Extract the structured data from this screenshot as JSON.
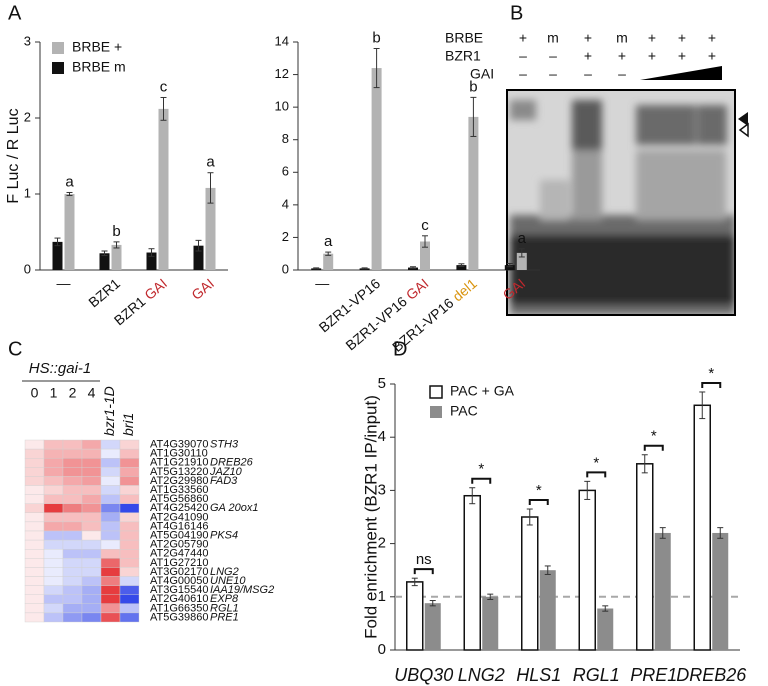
{
  "panel_labels": [
    "A",
    "B",
    "C",
    "D"
  ],
  "gel": {
    "row_labels": [
      "BRBE",
      "BZR1",
      "GAI"
    ],
    "lanes": [
      [
        "+",
        "m",
        "+",
        "m",
        "+",
        "+",
        "+"
      ],
      [
        "–",
        "–",
        "+",
        "+",
        "+",
        "+",
        "+"
      ],
      [
        "–",
        "–",
        "–",
        "–"
      ]
    ]
  },
  "chart_data": [
    {
      "type": "bar",
      "ylabel": "F Luc / R Luc",
      "categories": [
        [
          {
            "text": "—"
          }
        ],
        [
          {
            "text": "BZR1"
          }
        ],
        [
          {
            "text": "BZR1"
          },
          {
            "text": "GAI",
            "color": "#c0282d"
          }
        ],
        [
          {
            "text": "GAI",
            "color": "#c0282d"
          }
        ]
      ],
      "series": [
        {
          "name": "BRBE +",
          "color": "#b3b3b3",
          "values": [
            1.0,
            0.33,
            2.12,
            1.08
          ],
          "errors": [
            0.02,
            0.04,
            0.15,
            0.2
          ]
        },
        {
          "name": "BRBE m",
          "color": "#111111",
          "values": [
            0.37,
            0.22,
            0.23,
            0.32
          ],
          "errors": [
            0.05,
            0.03,
            0.05,
            0.07
          ]
        }
      ],
      "annotations": [
        "a",
        "b",
        "c",
        "a"
      ],
      "ylim": [
        0,
        3
      ],
      "yticks": [
        0,
        1,
        2,
        3
      ]
    },
    {
      "type": "bar",
      "categories": [
        [
          {
            "text": "—"
          }
        ],
        [
          {
            "text": "BZR1-VP16"
          }
        ],
        [
          {
            "text": "BZR1-VP16"
          },
          {
            "text": "GAI",
            "color": "#c0282d"
          }
        ],
        [
          {
            "text": "BZR1-VP16"
          },
          {
            "text": "del1",
            "color": "#d9940f"
          }
        ],
        [
          {
            "text": "GAI",
            "color": "#c0282d"
          }
        ]
      ],
      "series": [
        {
          "name": "BRBE +",
          "color": "#b3b3b3",
          "values": [
            1.0,
            12.4,
            1.75,
            9.4,
            1.05
          ],
          "errors": [
            0.1,
            1.2,
            0.35,
            1.2,
            0.25
          ]
        },
        {
          "name": "BRBE m",
          "color": "#111111",
          "values": [
            0.1,
            0.1,
            0.15,
            0.3,
            0.3
          ],
          "errors": [
            0.03,
            0.03,
            0.05,
            0.08,
            0.1
          ]
        }
      ],
      "annotations": [
        "a",
        "b",
        "c",
        "b",
        "a"
      ],
      "ylim": [
        0,
        14
      ],
      "yticks": [
        0,
        2,
        4,
        6,
        8,
        10,
        12,
        14
      ]
    },
    {
      "type": "heatmap",
      "title": "HS::gai-1",
      "columns": [
        "0",
        "1",
        "2",
        "4",
        "bzr1-1D",
        "bri1"
      ],
      "row_labels": [
        "AT4G39070",
        "AT1G30110",
        "AT1G21910",
        "AT5G13220",
        "AT2G29980",
        "AT1G33560",
        "AT5G56860",
        "AT4G25420",
        "AT2G41090",
        "AT4G16146",
        "AT5G04190",
        "AT2G05790",
        "AT2G47440",
        "AT1G27210",
        "AT3G02170",
        "AT4G00050",
        "AT3G15540",
        "AT2G40610",
        "AT1G66350",
        "AT5G39860"
      ],
      "gene_names": [
        "STH3",
        null,
        "DREB26",
        "JAZ10",
        "FAD3",
        null,
        null,
        "GA 20ox1",
        null,
        null,
        "PKS4",
        null,
        null,
        null,
        "LNG2",
        "UNE10",
        "IAA19/MSG2",
        "EXP8",
        "RGL1",
        "PRE1"
      ],
      "values": [
        [
          0.1,
          0.3,
          0.3,
          0.4,
          -0.2,
          0.2
        ],
        [
          0.2,
          0.35,
          0.35,
          0.35,
          -0.1,
          0.3
        ],
        [
          0.2,
          0.4,
          0.5,
          0.5,
          -0.3,
          0.5
        ],
        [
          0.2,
          0.4,
          0.5,
          0.5,
          -0.2,
          0.4
        ],
        [
          0.2,
          0.3,
          0.4,
          0.45,
          -0.1,
          0.5
        ],
        [
          0.1,
          0.2,
          0.3,
          0.3,
          -0.2,
          0.2
        ],
        [
          0.1,
          0.3,
          0.3,
          0.4,
          -0.3,
          0.3
        ],
        [
          0.2,
          0.9,
          0.6,
          0.5,
          -0.6,
          -0.9
        ],
        [
          0.1,
          0.3,
          0.3,
          0.3,
          -0.4,
          0.2
        ],
        [
          0.1,
          0.4,
          0.4,
          0.3,
          -0.3,
          0.3
        ],
        [
          0.1,
          -0.3,
          -0.3,
          0.1,
          -0.3,
          0.3
        ],
        [
          0.1,
          -0.2,
          -0.2,
          -0.2,
          -0.1,
          0.3
        ],
        [
          0.1,
          -0.1,
          -0.3,
          -0.3,
          0.3,
          0.3
        ],
        [
          0.1,
          -0.1,
          -0.2,
          -0.2,
          0.7,
          0.3
        ],
        [
          0.1,
          -0.1,
          -0.2,
          -0.2,
          0.9,
          0.2
        ],
        [
          0.1,
          -0.1,
          -0.2,
          -0.3,
          0.6,
          -0.2
        ],
        [
          0.1,
          -0.2,
          -0.3,
          -0.4,
          0.9,
          -0.8
        ],
        [
          0.1,
          -0.3,
          -0.3,
          -0.4,
          0.9,
          -0.9
        ],
        [
          0.1,
          -0.2,
          -0.4,
          -0.4,
          0.5,
          -0.3
        ],
        [
          0.1,
          -0.3,
          -0.5,
          -0.6,
          0.8,
          -0.7
        ]
      ],
      "zlim": [
        -1,
        1
      ],
      "color_low": "#1f35e6",
      "color_mid": "#ffffff",
      "color_high": "#e3262a"
    },
    {
      "type": "bar",
      "ylabel": "Fold enrichment (BZR1 IP/input)",
      "categories": [
        [
          {
            "text": "UBQ30"
          }
        ],
        [
          {
            "text": "LNG2"
          }
        ],
        [
          {
            "text": "HLS1"
          }
        ],
        [
          {
            "text": "RGL1"
          }
        ],
        [
          {
            "text": "PRE1"
          }
        ],
        [
          {
            "text": "DREB26"
          }
        ]
      ],
      "series": [
        {
          "name": "PAC + GA",
          "color": "#ffffff",
          "edgecolor": "#111111",
          "values": [
            1.28,
            2.9,
            2.5,
            3.0,
            3.5,
            4.6
          ],
          "errors": [
            0.07,
            0.15,
            0.15,
            0.17,
            0.17,
            0.25
          ]
        },
        {
          "name": "PAC",
          "color": "#8c8c8c",
          "values": [
            0.88,
            1.0,
            1.5,
            0.78,
            2.2,
            2.2
          ],
          "errors": [
            0.05,
            0.05,
            0.08,
            0.05,
            0.1,
            0.1
          ]
        }
      ],
      "annotations": [
        "ns",
        "*",
        "*",
        "*",
        "*",
        "*"
      ],
      "reference_line": 1,
      "ylim": [
        0,
        5
      ],
      "yticks": [
        0,
        1,
        2,
        3,
        4,
        5
      ]
    }
  ]
}
